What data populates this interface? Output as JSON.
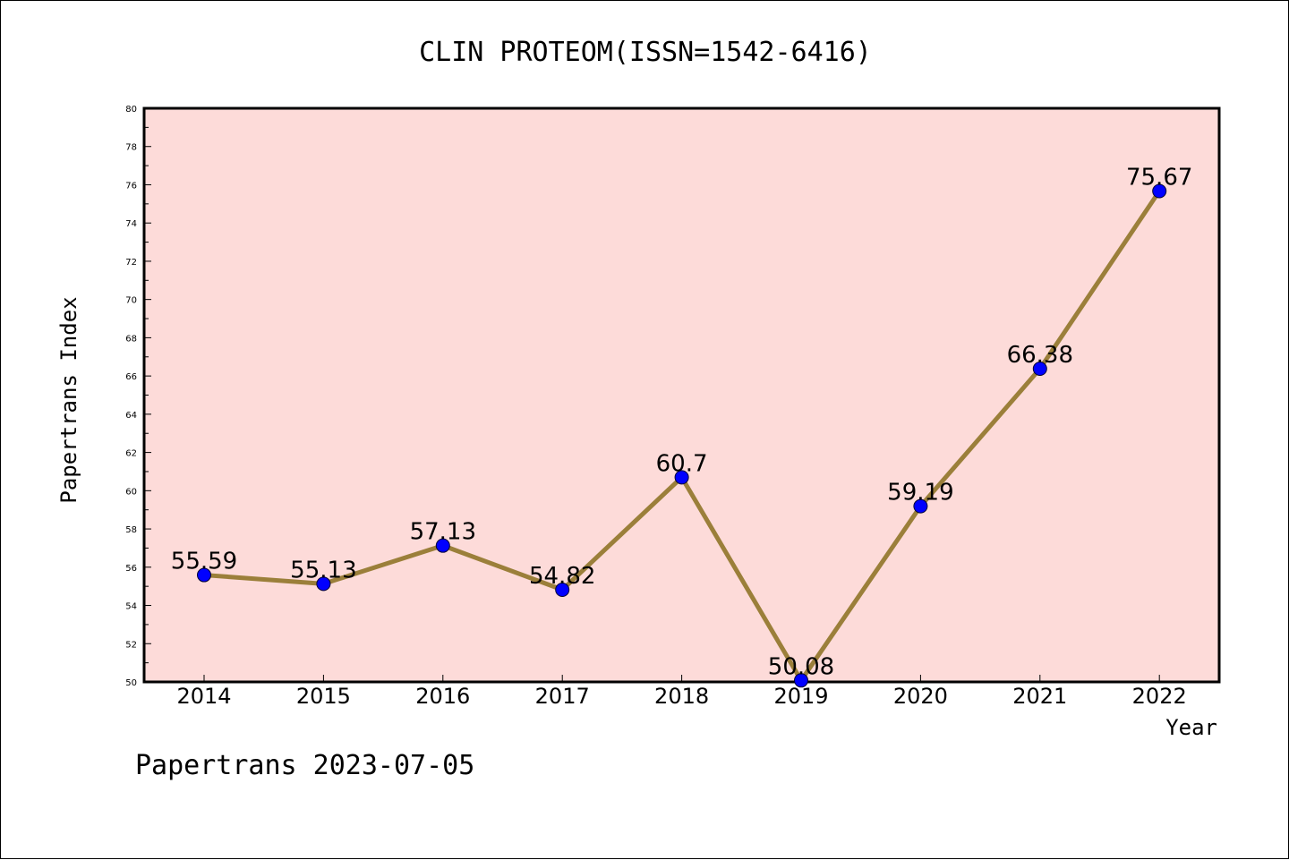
{
  "chart_data": {
    "type": "line",
    "title": "CLIN PROTEOM(ISSN=1542-6416)",
    "xlabel": "Year",
    "ylabel": "Papertrans Index",
    "categories": [
      "2014",
      "2015",
      "2016",
      "2017",
      "2018",
      "2019",
      "2020",
      "2021",
      "2022"
    ],
    "series": [
      {
        "values": [
          55.59,
          55.13,
          57.13,
          54.82,
          60.7,
          50.08,
          59.19,
          66.38,
          75.67
        ],
        "labels": [
          "55.59",
          "55.13",
          "57.13",
          "54.82",
          "60.7",
          "50.08",
          "59.19",
          "66.38",
          "75.67"
        ]
      }
    ],
    "ylim": [
      50,
      80
    ],
    "yticks": [
      "50",
      "52",
      "54",
      "56",
      "58",
      "60",
      "62",
      "64",
      "66",
      "68",
      "70",
      "72",
      "74",
      "76",
      "78",
      "80"
    ],
    "grid": false,
    "colors": {
      "plot_background": "#fddbd9",
      "line": "#9b7f3a",
      "marker": "#0000ff"
    }
  },
  "footer": "Papertrans 2023-07-05"
}
